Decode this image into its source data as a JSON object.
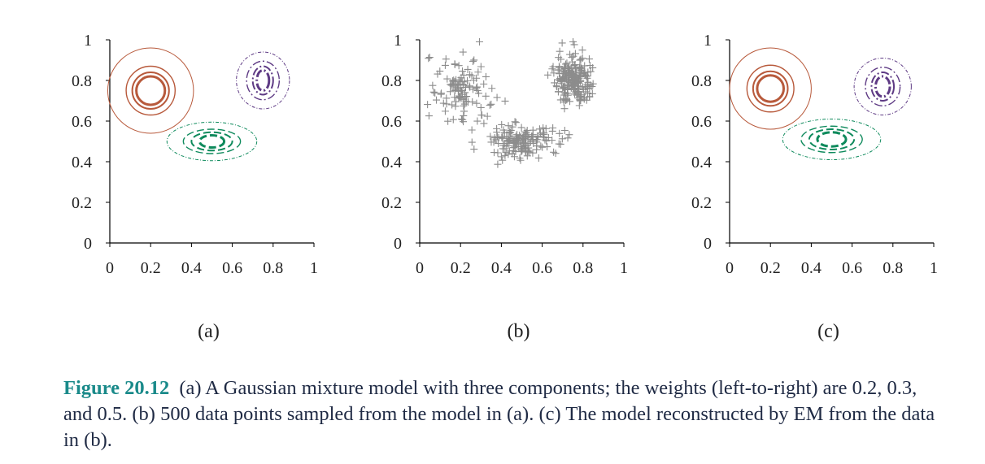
{
  "figure": {
    "caption_label": "Figure 20.12",
    "caption_text": "(a) A Gaussian mixture model with three components; the weights (left-to-right) are 0.2, 0.3, and 0.5. (b) 500 data points sampled from the model in (a). (c) The model reconstructed by EM from the data in (b)."
  },
  "colors": {
    "component_1": "#b85a3c",
    "component_2": "#0e8a5c",
    "component_3": "#5e3a84",
    "points": "#8c8c8c",
    "axis": "#000000"
  },
  "chart_data": [
    {
      "type": "contour",
      "panel_label": "(a)",
      "xlim": [
        0,
        1
      ],
      "ylim": [
        0,
        1
      ],
      "x_ticks": [
        "0",
        "0.2",
        "0.4",
        "0.6",
        "0.8",
        "1"
      ],
      "y_ticks": [
        "0",
        "0.2",
        "0.4",
        "0.6",
        "0.8",
        "1"
      ],
      "components": [
        {
          "weight": 0.2,
          "mean": [
            0.2,
            0.75
          ],
          "radii": [
            [
              0.07,
              0.07
            ],
            [
              0.09,
              0.09
            ],
            [
              0.12,
              0.12
            ],
            [
              0.21,
              0.21
            ]
          ],
          "line": "solid"
        },
        {
          "weight": 0.3,
          "mean": [
            0.5,
            0.5
          ],
          "radii": [
            [
              0.06,
              0.03
            ],
            [
              0.1,
              0.045
            ],
            [
              0.14,
              0.06
            ],
            [
              0.22,
              0.095
            ]
          ],
          "line": "dashed"
        },
        {
          "weight": 0.5,
          "mean": [
            0.75,
            0.8
          ],
          "radii": [
            [
              0.03,
              0.05
            ],
            [
              0.05,
              0.07
            ],
            [
              0.08,
              0.095
            ],
            [
              0.13,
              0.14
            ]
          ],
          "line": "dashdot"
        }
      ]
    },
    {
      "type": "scatter",
      "panel_label": "(b)",
      "n_points": 500,
      "xlim": [
        0,
        1
      ],
      "ylim": [
        0,
        1
      ],
      "x_ticks": [
        "0",
        "0.2",
        "0.4",
        "0.6",
        "0.8",
        "1"
      ],
      "y_ticks": [
        "0",
        "0.2",
        "0.4",
        "0.6",
        "0.8",
        "1"
      ],
      "marker": "+"
    },
    {
      "type": "contour",
      "panel_label": "(c)",
      "xlim": [
        0,
        1
      ],
      "ylim": [
        0,
        1
      ],
      "x_ticks": [
        "0",
        "0.2",
        "0.4",
        "0.6",
        "0.8",
        "1"
      ],
      "y_ticks": [
        "0",
        "0.2",
        "0.4",
        "0.6",
        "0.8",
        "1"
      ],
      "components": [
        {
          "mean": [
            0.2,
            0.76
          ],
          "radii": [
            [
              0.065,
              0.065
            ],
            [
              0.085,
              0.085
            ],
            [
              0.115,
              0.115
            ],
            [
              0.2,
              0.2
            ]
          ],
          "line": "solid"
        },
        {
          "mean": [
            0.5,
            0.51
          ],
          "radii": [
            [
              0.07,
              0.035
            ],
            [
              0.11,
              0.05
            ],
            [
              0.15,
              0.065
            ],
            [
              0.24,
              0.1
            ]
          ],
          "line": "dashed"
        },
        {
          "mean": [
            0.75,
            0.77
          ],
          "radii": [
            [
              0.035,
              0.05
            ],
            [
              0.055,
              0.07
            ],
            [
              0.085,
              0.095
            ],
            [
              0.14,
              0.14
            ]
          ],
          "line": "dashdot"
        }
      ]
    }
  ]
}
